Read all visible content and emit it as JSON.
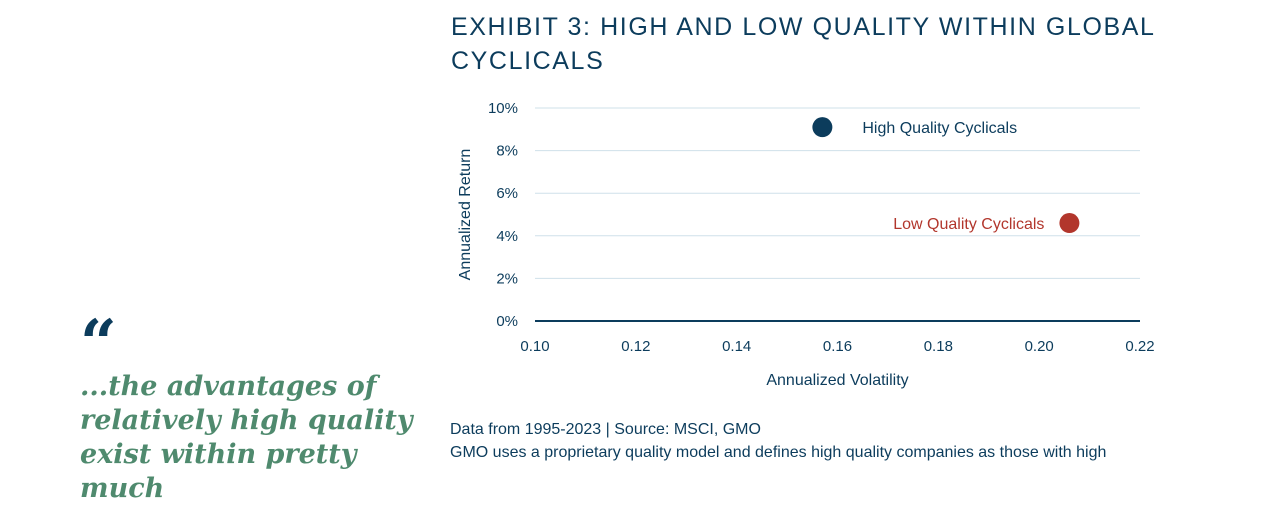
{
  "quote": {
    "mark": "“",
    "text": "...the advantages of relatively high quality exist within pretty much"
  },
  "exhibit": {
    "title": "EXHIBIT 3: HIGH AND LOW QUALITY WITHIN GLOBAL CYCLICALS"
  },
  "source_line": "Data from 1995-2023 | Source: MSCI, GMO",
  "note_line": "GMO uses a proprietary quality model and defines high quality companies as those with high",
  "colors": {
    "navy": "#0c3c5c",
    "red": "#b2362c",
    "gridline": "#cfe0ea",
    "quote_green": "#4f8a6e"
  },
  "chart_data": {
    "type": "scatter",
    "xlabel": "Annualized Volatility",
    "ylabel": "Annualized Return",
    "xlim": [
      0.1,
      0.22
    ],
    "ylim": [
      0,
      10
    ],
    "x_ticks": [
      "0.10",
      "0.12",
      "0.14",
      "0.16",
      "0.18",
      "0.20",
      "0.22"
    ],
    "y_ticks": [
      "0%",
      "2%",
      "4%",
      "6%",
      "8%",
      "10%"
    ],
    "grid": true,
    "series": [
      {
        "name": "High Quality Cyclicals",
        "x": 0.157,
        "y": 9.1,
        "color": "#0c3c5c",
        "label_side": "right"
      },
      {
        "name": "Low Quality Cyclicals",
        "x": 0.206,
        "y": 4.6,
        "color": "#b2362c",
        "label_side": "left"
      }
    ]
  }
}
